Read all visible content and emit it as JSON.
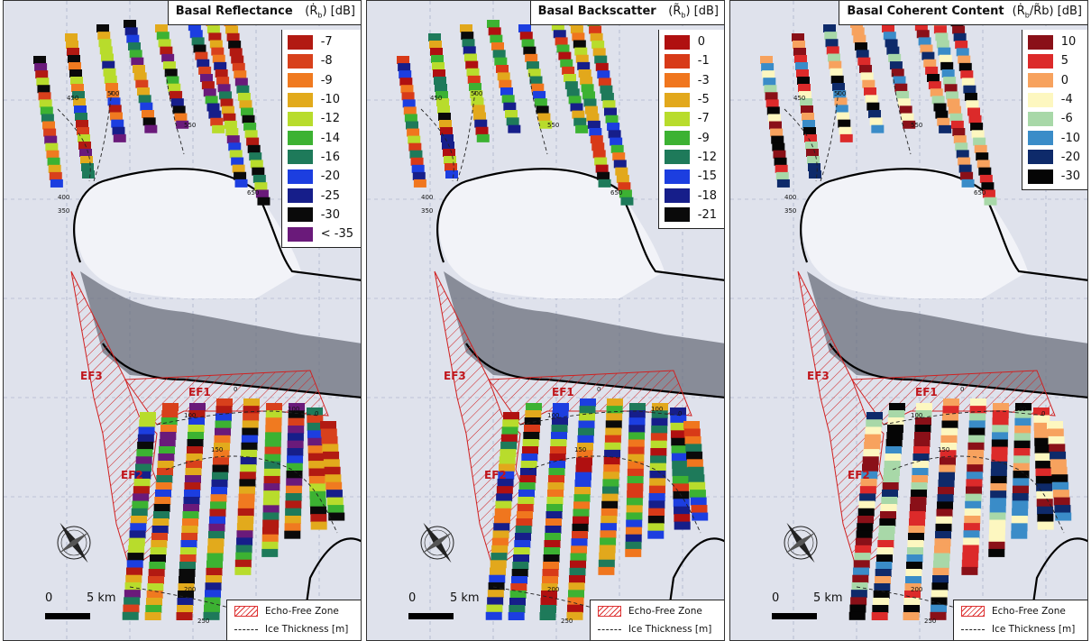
{
  "panels": [
    {
      "title": "Basal Reflectance",
      "symbol": "(Ṙ",
      "symbol_sub": "b",
      "symbol_close": ") [dB]",
      "legend": [
        {
          "label": "-7",
          "color": "#b21a12"
        },
        {
          "label": "-8",
          "color": "#d8401c"
        },
        {
          "label": "-9",
          "color": "#f07a20"
        },
        {
          "label": "-10",
          "color": "#e2aa1c"
        },
        {
          "label": "-12",
          "color": "#b8dc2c"
        },
        {
          "label": "-14",
          "color": "#3cb232"
        },
        {
          "label": "-16",
          "color": "#1e7a5a"
        },
        {
          "label": "-20",
          "color": "#1c3ee0"
        },
        {
          "label": "-25",
          "color": "#161e8a"
        },
        {
          "label": "-30",
          "color": "#0a0a0a"
        },
        {
          "label": "< -35",
          "color": "#6a1a7a"
        }
      ]
    },
    {
      "title": "Basal Backscatter",
      "symbol": "(R̃",
      "symbol_sub": "b",
      "symbol_close": ") [dB]",
      "legend": [
        {
          "label": "0",
          "color": "#b01010"
        },
        {
          "label": "-1",
          "color": "#d83a18"
        },
        {
          "label": "-3",
          "color": "#f0761e"
        },
        {
          "label": "-5",
          "color": "#e2a81c"
        },
        {
          "label": "-7",
          "color": "#b8dc2c"
        },
        {
          "label": "-9",
          "color": "#3cb232"
        },
        {
          "label": "-12",
          "color": "#1e7a5a"
        },
        {
          "label": "-15",
          "color": "#1c3ee0"
        },
        {
          "label": "-18",
          "color": "#161e8a"
        },
        {
          "label": "-21",
          "color": "#0a0a0a"
        }
      ]
    },
    {
      "title": "Basal Coherent Content",
      "symbol": "(Ṙ",
      "symbol_sub": "b",
      "symbol_close": "/R̃b) [dB]",
      "legend": [
        {
          "label": "10",
          "color": "#8a1018"
        },
        {
          "label": "5",
          "color": "#dc2a2a"
        },
        {
          "label": "0",
          "color": "#f7a25e"
        },
        {
          "label": "-4",
          "color": "#fdf7c0"
        },
        {
          "label": "-6",
          "color": "#a8d8a8"
        },
        {
          "label": "-10",
          "color": "#3a8cc8"
        },
        {
          "label": "-20",
          "color": "#0e2a6a"
        },
        {
          "label": "-30",
          "color": "#050505"
        }
      ]
    }
  ],
  "common": {
    "scale_zero": "0",
    "scale_five": "5 km",
    "echo_free_label": "Echo-Free Zone",
    "ice_thickness_label": "Ice Thickness [m]",
    "zones": [
      "EF1",
      "EF2",
      "EF3"
    ],
    "contours": [
      "0",
      "100",
      "150",
      "200",
      "250",
      "350",
      "400",
      "450",
      "500",
      "550",
      "650"
    ]
  }
}
